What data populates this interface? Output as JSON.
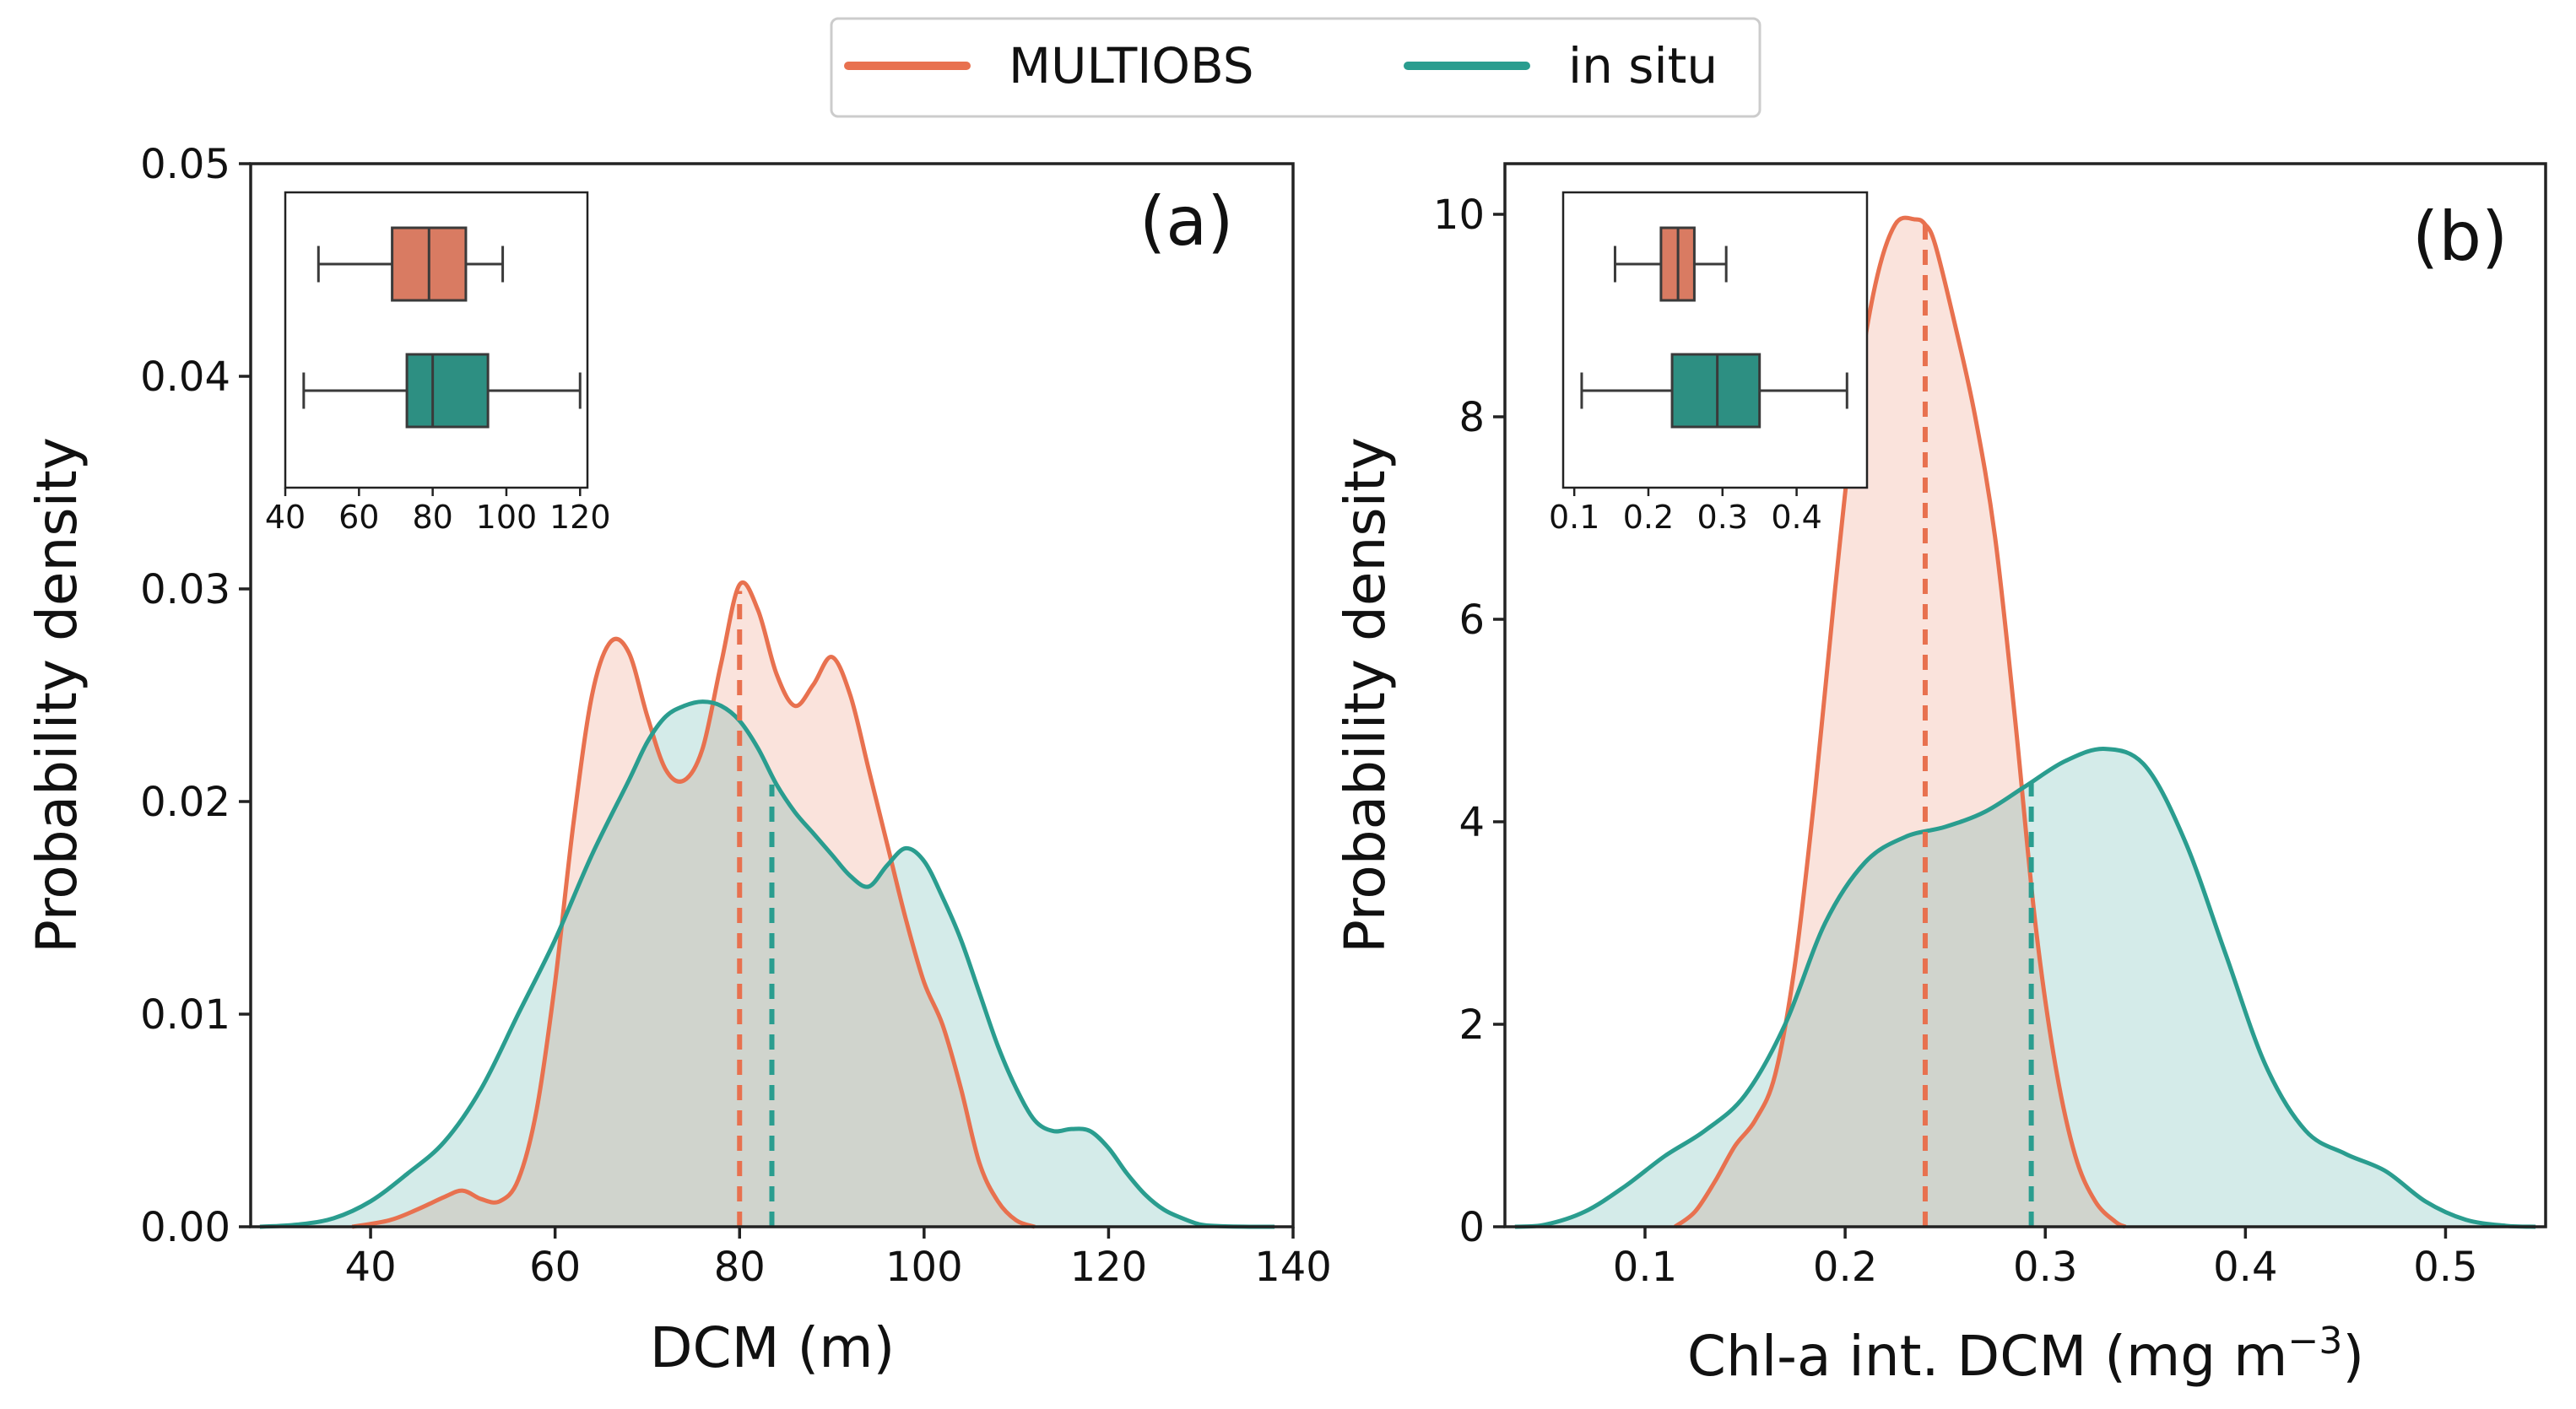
{
  "colors": {
    "multiobs": "#e8714f",
    "insitu": "#2a9d8f",
    "multiobs_box": "#d97b62",
    "insitu_box": "#2d8f82",
    "overlap": "#d3d5cd"
  },
  "legend": {
    "items": [
      {
        "label": "MULTIOBS",
        "color": "#e8714f"
      },
      {
        "label": "in situ",
        "color": "#2a9d8f"
      }
    ]
  },
  "chart_data": [
    {
      "type": "area",
      "panel_label": "(a)",
      "xlabel": "DCM (m)",
      "ylabel": "Probability density",
      "xlim": [
        27,
        140
      ],
      "ylim": [
        0,
        0.05
      ],
      "xticks": [
        40,
        60,
        80,
        100,
        120,
        140
      ],
      "xtick_labels": [
        "40",
        "60",
        "80",
        "100",
        "120",
        "140"
      ],
      "yticks": [
        0,
        0.01,
        0.02,
        0.03,
        0.04,
        0.05
      ],
      "ytick_labels": [
        "0.00",
        "0.01",
        "0.02",
        "0.03",
        "0.04",
        "0.05"
      ],
      "grid": false,
      "legend_position": "top-center",
      "series": [
        {
          "name": "MULTIOBS",
          "x": [
            38,
            42,
            45,
            48,
            50,
            52,
            54,
            56,
            58,
            60,
            62,
            64,
            66,
            68,
            70,
            72,
            74,
            76,
            78,
            80,
            82,
            84,
            86,
            88,
            90,
            92,
            94,
            96,
            98,
            100,
            102,
            104,
            106,
            108,
            110,
            112
          ],
          "y": [
            0,
            0.0003,
            0.0008,
            0.0014,
            0.0017,
            0.0013,
            0.0012,
            0.0022,
            0.0055,
            0.0115,
            0.019,
            0.025,
            0.0275,
            0.027,
            0.024,
            0.0215,
            0.021,
            0.0225,
            0.0265,
            0.0302,
            0.029,
            0.026,
            0.0245,
            0.0255,
            0.0268,
            0.025,
            0.0215,
            0.018,
            0.0145,
            0.0115,
            0.0095,
            0.0065,
            0.003,
            0.0012,
            0.0003,
            0
          ]
        },
        {
          "name": "in situ",
          "x": [
            28,
            32,
            36,
            40,
            44,
            48,
            52,
            56,
            60,
            64,
            68,
            70,
            72,
            74,
            76,
            78,
            80,
            82,
            84,
            86,
            88,
            90,
            92,
            94,
            96,
            98,
            100,
            102,
            104,
            106,
            108,
            110,
            112,
            114,
            116,
            118,
            120,
            122,
            124,
            126,
            128,
            130,
            132,
            136,
            138
          ],
          "y": [
            0,
            0.0001,
            0.0004,
            0.0012,
            0.0025,
            0.004,
            0.0065,
            0.01,
            0.0135,
            0.0175,
            0.021,
            0.0228,
            0.024,
            0.0245,
            0.0247,
            0.0245,
            0.0238,
            0.0225,
            0.0208,
            0.0195,
            0.0185,
            0.0175,
            0.0165,
            0.016,
            0.017,
            0.0178,
            0.0172,
            0.0155,
            0.0135,
            0.011,
            0.0085,
            0.0065,
            0.005,
            0.0045,
            0.0046,
            0.0045,
            0.0037,
            0.0025,
            0.0015,
            0.0008,
            0.0004,
            0.0001,
            3e-05,
            0,
            0
          ]
        }
      ],
      "vlines": [
        {
          "series": "MULTIOBS",
          "x": 80,
          "y": 0.0299
        },
        {
          "series": "in situ",
          "x": 83.5,
          "y": 0.0208
        }
      ],
      "inset": {
        "type": "boxplot",
        "xlim": [
          40,
          122
        ],
        "xticks": [
          40,
          60,
          80,
          100,
          120
        ],
        "xtick_labels": [
          "40",
          "60",
          "80",
          "100",
          "120"
        ],
        "boxes": [
          {
            "series": "MULTIOBS",
            "whisker_low": 49,
            "q1": 69,
            "median": 79,
            "q3": 89,
            "whisker_high": 99
          },
          {
            "series": "in situ",
            "whisker_low": 45,
            "q1": 73,
            "median": 80,
            "q3": 95,
            "whisker_high": 120
          }
        ]
      }
    },
    {
      "type": "area",
      "panel_label": "(b)",
      "xlabel": "Chl-a int. DCM (mg m",
      "xlabel_superscript": "−3",
      "xlabel_suffix": ")",
      "ylabel": "Probability density",
      "xlim": [
        0.03,
        0.55
      ],
      "ylim": [
        0,
        10.5
      ],
      "xticks": [
        0.1,
        0.2,
        0.3,
        0.4,
        0.5
      ],
      "xtick_labels": [
        "0.1",
        "0.2",
        "0.3",
        "0.4",
        "0.5"
      ],
      "yticks": [
        0,
        2,
        4,
        6,
        8,
        10
      ],
      "ytick_labels": [
        "0",
        "2",
        "4",
        "6",
        "8",
        "10"
      ],
      "grid": false,
      "series": [
        {
          "name": "MULTIOBS",
          "x": [
            0.115,
            0.125,
            0.135,
            0.145,
            0.155,
            0.165,
            0.175,
            0.185,
            0.195,
            0.205,
            0.215,
            0.225,
            0.235,
            0.24,
            0.245,
            0.255,
            0.265,
            0.275,
            0.285,
            0.295,
            0.305,
            0.315,
            0.325,
            0.335,
            0.34
          ],
          "y": [
            0,
            0.15,
            0.45,
            0.8,
            1.05,
            1.5,
            2.6,
            4.3,
            6.3,
            8.1,
            9.3,
            9.9,
            9.95,
            9.9,
            9.7,
            8.9,
            8.0,
            6.8,
            5.0,
            3.0,
            1.6,
            0.7,
            0.25,
            0.05,
            0
          ]
        },
        {
          "name": "in situ",
          "x": [
            0.035,
            0.05,
            0.07,
            0.09,
            0.11,
            0.13,
            0.15,
            0.17,
            0.19,
            0.21,
            0.23,
            0.25,
            0.27,
            0.29,
            0.31,
            0.33,
            0.35,
            0.37,
            0.39,
            0.41,
            0.43,
            0.45,
            0.47,
            0.49,
            0.51,
            0.53,
            0.545
          ],
          "y": [
            0,
            0.02,
            0.15,
            0.4,
            0.7,
            0.95,
            1.3,
            2.0,
            3.0,
            3.6,
            3.85,
            3.95,
            4.1,
            4.35,
            4.6,
            4.72,
            4.55,
            3.8,
            2.7,
            1.6,
            0.95,
            0.72,
            0.55,
            0.25,
            0.07,
            0.01,
            0
          ]
        }
      ],
      "vlines": [
        {
          "series": "MULTIOBS",
          "x": 0.24,
          "y": 9.9
        },
        {
          "series": "in situ",
          "x": 0.293,
          "y": 4.38
        }
      ],
      "inset": {
        "type": "boxplot",
        "xlim": [
          0.085,
          0.495
        ],
        "xticks": [
          0.1,
          0.2,
          0.3,
          0.4
        ],
        "xtick_labels": [
          "0.1",
          "0.2",
          "0.3",
          "0.4"
        ],
        "boxes": [
          {
            "series": "MULTIOBS",
            "whisker_low": 0.155,
            "q1": 0.217,
            "median": 0.24,
            "q3": 0.262,
            "whisker_high": 0.305
          },
          {
            "series": "in situ",
            "whisker_low": 0.11,
            "q1": 0.232,
            "median": 0.293,
            "q3": 0.35,
            "whisker_high": 0.468
          }
        ]
      }
    }
  ]
}
